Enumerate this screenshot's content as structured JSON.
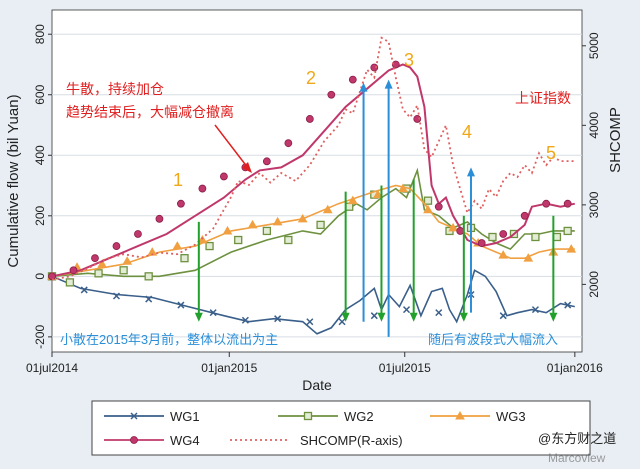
{
  "chart_data": {
    "type": "line",
    "xlabel": "Date",
    "ylabel": "Cumulative flow (bil Yuan)",
    "y2label": "SHCOMP",
    "x_ticks": [
      "01jul2014",
      "01jan2015",
      "01jul2015",
      "01jan2016"
    ],
    "y_ticks": [
      -200,
      0,
      200,
      400,
      600,
      800
    ],
    "y2_ticks": [
      2000,
      3000,
      4000,
      5000
    ],
    "ylim": [
      -250,
      880
    ],
    "y2lim": [
      1150,
      5450
    ],
    "grid": true,
    "legend_position": "bottom",
    "series": [
      {
        "name": "WG1",
        "axis": "left",
        "color": "#3a5f8a",
        "marker": "x",
        "points": [
          [
            0,
            0
          ],
          [
            8,
            -40
          ],
          [
            18,
            -60
          ],
          [
            28,
            -70
          ],
          [
            38,
            -100
          ],
          [
            48,
            -130
          ],
          [
            55,
            -150
          ],
          [
            62,
            -140
          ],
          [
            70,
            -150
          ],
          [
            74,
            -190
          ],
          [
            78,
            -170
          ],
          [
            82,
            -110
          ],
          [
            86,
            -80
          ],
          [
            90,
            -40
          ],
          [
            92,
            -110
          ],
          [
            94,
            -60
          ],
          [
            97,
            -100
          ],
          [
            100,
            -30
          ],
          [
            103,
            -130
          ],
          [
            106,
            -50
          ],
          [
            109,
            -40
          ],
          [
            111,
            -110
          ],
          [
            113,
            -150
          ],
          [
            116,
            -60
          ],
          [
            118,
            20
          ],
          [
            121,
            0
          ],
          [
            124,
            -50
          ],
          [
            127,
            -130
          ],
          [
            130,
            -120
          ],
          [
            134,
            -110
          ],
          [
            138,
            -120
          ],
          [
            142,
            -90
          ],
          [
            146,
            -100
          ]
        ],
        "markers": [
          [
            0,
            0
          ],
          [
            9,
            -45
          ],
          [
            18,
            -65
          ],
          [
            27,
            -75
          ],
          [
            36,
            -95
          ],
          [
            45,
            -120
          ],
          [
            54,
            -145
          ],
          [
            63,
            -140
          ],
          [
            72,
            -150
          ],
          [
            81,
            -150
          ],
          [
            90,
            -130
          ],
          [
            99,
            -110
          ],
          [
            108,
            -120
          ],
          [
            117,
            -60
          ],
          [
            126,
            -130
          ],
          [
            135,
            -110
          ],
          [
            144,
            -95
          ]
        ]
      },
      {
        "name": "WG2",
        "axis": "left",
        "color": "#6e9140",
        "marker": "square",
        "points": [
          [
            0,
            0
          ],
          [
            10,
            10
          ],
          [
            20,
            0
          ],
          [
            30,
            0
          ],
          [
            40,
            20
          ],
          [
            50,
            80
          ],
          [
            60,
            120
          ],
          [
            70,
            150
          ],
          [
            75,
            140
          ],
          [
            80,
            200
          ],
          [
            85,
            240
          ],
          [
            88,
            220
          ],
          [
            92,
            260
          ],
          [
            96,
            290
          ],
          [
            99,
            260
          ],
          [
            102,
            350
          ],
          [
            104,
            220
          ],
          [
            108,
            200
          ],
          [
            112,
            160
          ],
          [
            116,
            180
          ],
          [
            120,
            140
          ],
          [
            124,
            110
          ],
          [
            128,
            90
          ],
          [
            132,
            140
          ],
          [
            136,
            140
          ],
          [
            140,
            150
          ],
          [
            146,
            150
          ]
        ],
        "markers": [
          [
            0,
            0
          ],
          [
            5,
            -20
          ],
          [
            13,
            10
          ],
          [
            20,
            20
          ],
          [
            27,
            0
          ],
          [
            37,
            60
          ],
          [
            44,
            100
          ],
          [
            52,
            120
          ],
          [
            60,
            150
          ],
          [
            66,
            120
          ],
          [
            75,
            170
          ],
          [
            83,
            230
          ],
          [
            90,
            270
          ],
          [
            99,
            290
          ],
          [
            105,
            250
          ],
          [
            111,
            150
          ],
          [
            117,
            160
          ],
          [
            123,
            130
          ],
          [
            129,
            140
          ],
          [
            135,
            130
          ],
          [
            141,
            130
          ],
          [
            144,
            150
          ]
        ]
      },
      {
        "name": "WG3",
        "axis": "left",
        "color": "#f0a040",
        "marker": "triangle",
        "points": [
          [
            0,
            0
          ],
          [
            10,
            20
          ],
          [
            20,
            40
          ],
          [
            30,
            80
          ],
          [
            40,
            100
          ],
          [
            50,
            150
          ],
          [
            60,
            170
          ],
          [
            70,
            190
          ],
          [
            80,
            240
          ],
          [
            90,
            280
          ],
          [
            96,
            300
          ],
          [
            100,
            290
          ],
          [
            104,
            240
          ],
          [
            108,
            180
          ],
          [
            112,
            160
          ],
          [
            116,
            140
          ],
          [
            120,
            100
          ],
          [
            124,
            80
          ],
          [
            128,
            60
          ],
          [
            132,
            60
          ],
          [
            136,
            80
          ],
          [
            140,
            90
          ],
          [
            146,
            90
          ]
        ],
        "markers": [
          [
            0,
            0
          ],
          [
            7,
            30
          ],
          [
            14,
            40
          ],
          [
            21,
            50
          ],
          [
            28,
            80
          ],
          [
            35,
            100
          ],
          [
            42,
            120
          ],
          [
            49,
            150
          ],
          [
            56,
            170
          ],
          [
            63,
            180
          ],
          [
            70,
            190
          ],
          [
            77,
            220
          ],
          [
            84,
            250
          ],
          [
            91,
            270
          ],
          [
            98,
            290
          ],
          [
            105,
            220
          ],
          [
            112,
            160
          ],
          [
            119,
            110
          ],
          [
            126,
            70
          ],
          [
            133,
            60
          ],
          [
            140,
            80
          ],
          [
            145,
            90
          ]
        ]
      },
      {
        "name": "WG4",
        "axis": "left",
        "color": "#c0386b",
        "marker": "circle",
        "points": [
          [
            0,
            0
          ],
          [
            8,
            20
          ],
          [
            16,
            60
          ],
          [
            24,
            100
          ],
          [
            32,
            140
          ],
          [
            40,
            200
          ],
          [
            48,
            260
          ],
          [
            54,
            320
          ],
          [
            58,
            350
          ],
          [
            64,
            360
          ],
          [
            70,
            400
          ],
          [
            76,
            480
          ],
          [
            82,
            560
          ],
          [
            88,
            620
          ],
          [
            94,
            680
          ],
          [
            98,
            700
          ],
          [
            100,
            690
          ],
          [
            102,
            660
          ],
          [
            104,
            560
          ],
          [
            106,
            300
          ],
          [
            108,
            240
          ],
          [
            110,
            260
          ],
          [
            112,
            200
          ],
          [
            116,
            120
          ],
          [
            120,
            100
          ],
          [
            124,
            110
          ],
          [
            128,
            130
          ],
          [
            132,
            170
          ],
          [
            134,
            230
          ],
          [
            138,
            240
          ],
          [
            142,
            230
          ],
          [
            146,
            240
          ]
        ],
        "markers": [
          [
            0,
            0
          ],
          [
            6,
            20
          ],
          [
            12,
            60
          ],
          [
            18,
            100
          ],
          [
            24,
            140
          ],
          [
            30,
            190
          ],
          [
            36,
            240
          ],
          [
            42,
            290
          ],
          [
            48,
            330
          ],
          [
            54,
            360
          ],
          [
            60,
            380
          ],
          [
            66,
            440
          ],
          [
            72,
            520
          ],
          [
            78,
            600
          ],
          [
            84,
            650
          ],
          [
            90,
            690
          ],
          [
            96,
            700
          ],
          [
            102,
            520
          ],
          [
            108,
            230
          ],
          [
            114,
            150
          ],
          [
            120,
            110
          ],
          [
            126,
            140
          ],
          [
            132,
            200
          ],
          [
            138,
            240
          ],
          [
            144,
            240
          ]
        ]
      },
      {
        "name": "SHCOMP(R-axis)",
        "axis": "right",
        "color": "#e06060",
        "marker": "none",
        "dashed": true,
        "points": [
          [
            0,
            2060
          ],
          [
            5,
            2100
          ],
          [
            10,
            2200
          ],
          [
            15,
            2320
          ],
          [
            20,
            2380
          ],
          [
            25,
            2340
          ],
          [
            30,
            2400
          ],
          [
            35,
            2380
          ],
          [
            40,
            2500
          ],
          [
            45,
            2700
          ],
          [
            50,
            3100
          ],
          [
            52,
            3300
          ],
          [
            55,
            3250
          ],
          [
            58,
            3400
          ],
          [
            61,
            3280
          ],
          [
            64,
            3400
          ],
          [
            68,
            3300
          ],
          [
            72,
            3500
          ],
          [
            76,
            3800
          ],
          [
            80,
            4000
          ],
          [
            82,
            4200
          ],
          [
            84,
            4150
          ],
          [
            88,
            4700
          ],
          [
            90,
            4600
          ],
          [
            92,
            5100
          ],
          [
            94,
            5050
          ],
          [
            96,
            4600
          ],
          [
            98,
            4200
          ],
          [
            100,
            4100
          ],
          [
            102,
            4250
          ],
          [
            104,
            3700
          ],
          [
            106,
            3600
          ],
          [
            108,
            3800
          ],
          [
            110,
            4000
          ],
          [
            112,
            3500
          ],
          [
            114,
            3200
          ],
          [
            116,
            2900
          ],
          [
            118,
            3050
          ],
          [
            120,
            2950
          ],
          [
            122,
            3200
          ],
          [
            124,
            3100
          ],
          [
            126,
            3300
          ],
          [
            128,
            3400
          ],
          [
            130,
            3350
          ],
          [
            132,
            3500
          ],
          [
            134,
            3400
          ],
          [
            136,
            3650
          ],
          [
            138,
            3500
          ],
          [
            140,
            3600
          ],
          [
            142,
            3550
          ],
          [
            146,
            3550
          ]
        ]
      }
    ],
    "annotations": {
      "top_left_line1": "牛散，持续加仓",
      "top_left_line2": "趋势结束后，大幅减仓撤离",
      "index_label": "上证指数",
      "bottom_left": "小散在2015年3月前，整体以流出为主",
      "bottom_right": "随后有波段式大幅流入",
      "n1": "1",
      "n2": "2",
      "n3": "3",
      "n4": "4",
      "n5": "5"
    },
    "green_arrows": [
      [
        41,
        180
      ],
      [
        82,
        280
      ],
      [
        92,
        300
      ],
      [
        101,
        320
      ],
      [
        115,
        200
      ],
      [
        140,
        200
      ]
    ],
    "blue_arrows": [
      [
        87,
        -150
      ],
      [
        94,
        -200
      ],
      [
        117,
        -120
      ]
    ]
  },
  "watermark": {
    "line1": "@东方财之道",
    "line2": "Marcoview"
  }
}
